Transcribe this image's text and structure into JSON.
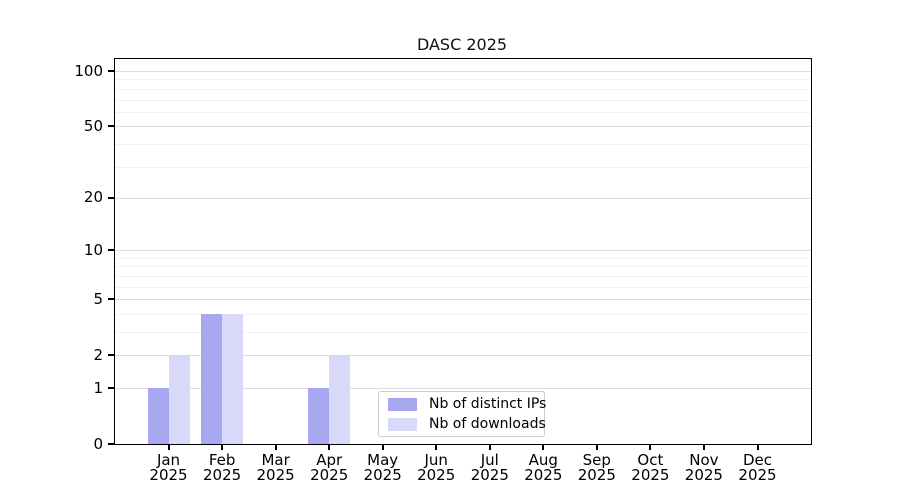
{
  "title": "DASC 2025",
  "chart_data": {
    "type": "bar",
    "title": "DASC 2025",
    "categories": [
      "Jan",
      "Feb",
      "Mar",
      "Apr",
      "May",
      "Jun",
      "Jul",
      "Aug",
      "Sep",
      "Oct",
      "Nov",
      "Dec"
    ],
    "year_label": "2025",
    "series": [
      {
        "name": "Nb of distinct IPs",
        "color": "#a8a8f0",
        "values": [
          1,
          4,
          0,
          1,
          0,
          0,
          0,
          0,
          0,
          0,
          0,
          0
        ]
      },
      {
        "name": "Nb of downloads",
        "color": "#d8d8f8",
        "values": [
          2,
          4,
          0,
          2,
          0,
          0,
          0,
          0,
          0,
          0,
          0,
          0
        ]
      }
    ],
    "xlabel": "",
    "ylabel": "",
    "yscale": "log1p",
    "ylim": [
      0,
      116
    ],
    "yticks": [
      0,
      1,
      2,
      5,
      10,
      20,
      50,
      100
    ],
    "yticks_minor": [
      3,
      4,
      6,
      7,
      8,
      9,
      30,
      40,
      60,
      70,
      80,
      90
    ],
    "grid": "horizontal",
    "legend": {
      "position": "lower center",
      "items": [
        "Nb of distinct IPs",
        "Nb of downloads"
      ]
    }
  },
  "colors": {
    "bar_distinct_ips": "#a8a8f0",
    "bar_downloads": "#d8d8f8",
    "grid_major": "#dedede",
    "grid_minor": "#f2f2f2",
    "spine": "#000000",
    "background": "#ffffff"
  }
}
